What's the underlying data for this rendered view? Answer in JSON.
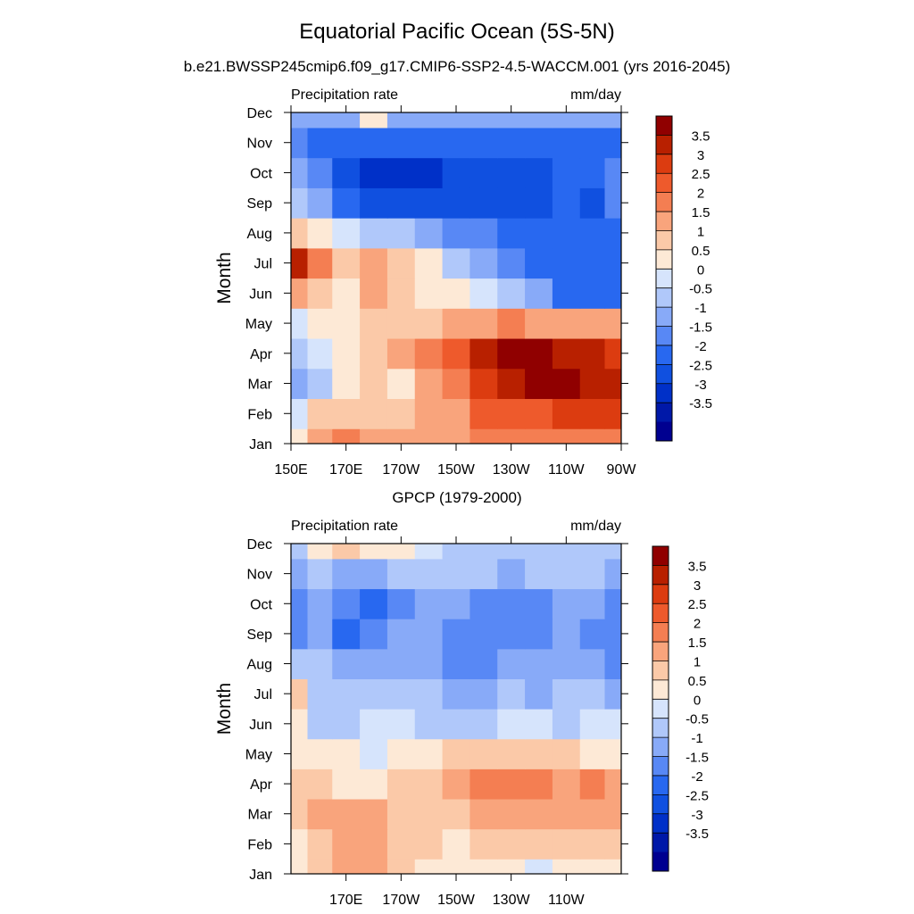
{
  "title": "Equatorial Pacific Ocean (5S-5N)",
  "subtitle": "b.e21.BWSSP245cmip6.f09_g17.CMIP6-SSP2-4.5-WACCM.001 (yrs 2016-2045)",
  "colors": {
    "scale": [
      "#000090",
      "#0018a8",
      "#0030c8",
      "#1050e0",
      "#2868f0",
      "#5888f5",
      "#88aaf8",
      "#b0c8fa",
      "#d6e4fc",
      "#fde9d6",
      "#fbc9a8",
      "#f9a47c",
      "#f47e52",
      "#ee5a2c",
      "#dc3c10",
      "#b82000",
      "#900000"
    ]
  },
  "chart_data": [
    {
      "type": "heatmap",
      "name": "model",
      "panel_title": "",
      "left_label": "Precipitation rate",
      "right_label": "mm/day",
      "ylabel": "Month",
      "months": [
        "Jan",
        "Feb",
        "Mar",
        "Apr",
        "May",
        "Jun",
        "Jul",
        "Aug",
        "Sep",
        "Oct",
        "Nov",
        "Dec"
      ],
      "xlim": [
        150,
        270
      ],
      "x_ticks": [
        {
          "value": 150,
          "label": "150E"
        },
        {
          "value": 170,
          "label": "170E"
        },
        {
          "value": 190,
          "label": "170W"
        },
        {
          "value": 210,
          "label": "150W"
        },
        {
          "value": 230,
          "label": "130W"
        },
        {
          "value": 250,
          "label": "110W"
        },
        {
          "value": 270,
          "label": "90W"
        }
      ],
      "x": [
        152,
        160,
        170,
        180,
        190,
        200,
        210,
        220,
        230,
        240,
        250,
        260,
        268
      ],
      "values": [
        [
          0.5,
          1.5,
          2.0,
          1.8,
          1.5,
          1.5,
          1.5,
          2.0,
          2.0,
          2.0,
          2.0,
          2.0,
          2.0
        ],
        [
          0.0,
          1.0,
          1.0,
          1.0,
          1.0,
          1.5,
          1.5,
          2.5,
          2.5,
          2.5,
          3.0,
          3.0,
          3.0
        ],
        [
          -1.0,
          -0.5,
          0.5,
          1.0,
          0.5,
          1.5,
          2.0,
          3.0,
          3.5,
          4.0,
          4.0,
          3.5,
          3.5
        ],
        [
          -0.5,
          0.0,
          0.5,
          1.0,
          1.5,
          2.0,
          2.5,
          3.5,
          4.0,
          4.0,
          3.5,
          3.5,
          3.0
        ],
        [
          0.0,
          0.5,
          0.5,
          1.0,
          1.0,
          1.0,
          1.5,
          1.5,
          2.0,
          1.5,
          1.5,
          1.5,
          1.5
        ],
        [
          1.5,
          1.0,
          0.5,
          1.5,
          1.0,
          0.5,
          0.5,
          0.0,
          -0.5,
          -1.0,
          -2.0,
          -2.0,
          -2.0
        ],
        [
          3.5,
          2.0,
          1.0,
          1.5,
          1.0,
          0.5,
          -0.5,
          -1.0,
          -1.5,
          -2.0,
          -2.0,
          -2.0,
          -2.0
        ],
        [
          1.0,
          0.5,
          0.0,
          -0.5,
          -0.5,
          -1.0,
          -1.5,
          -1.5,
          -2.0,
          -2.0,
          -2.0,
          -2.0,
          -2.0
        ],
        [
          -0.5,
          -1.0,
          -2.0,
          -2.5,
          -2.5,
          -2.5,
          -2.5,
          -2.5,
          -2.5,
          -2.5,
          -2.0,
          -2.5,
          -1.5
        ],
        [
          -1.0,
          -1.5,
          -2.5,
          -3.0,
          -3.0,
          -3.0,
          -2.5,
          -2.5,
          -2.5,
          -2.5,
          -2.0,
          -2.0,
          -1.5
        ],
        [
          -1.5,
          -2.0,
          -2.0,
          -2.0,
          -2.0,
          -2.0,
          -2.0,
          -2.0,
          -2.0,
          -2.0,
          -2.0,
          -2.0,
          -2.0
        ],
        [
          -1.0,
          -1.0,
          -1.0,
          0.5,
          -1.0,
          -1.0,
          -1.0,
          -1.0,
          -1.0,
          -1.0,
          -1.0,
          -1.0,
          -1.0
        ]
      ],
      "colorbar_labels": [
        "3.5",
        "3",
        "2.5",
        "2",
        "1.5",
        "1",
        "0.5",
        "0",
        "-0.5",
        "-1",
        "-1.5",
        "-2",
        "-2.5",
        "-3",
        "-3.5"
      ]
    },
    {
      "type": "heatmap",
      "name": "observed",
      "panel_title": "GPCP (1979-2000)",
      "left_label": "Precipitation rate",
      "right_label": "mm/day",
      "ylabel": "Month",
      "months": [
        "Jan",
        "Feb",
        "Mar",
        "Apr",
        "May",
        "Jun",
        "Jul",
        "Aug",
        "Sep",
        "Oct",
        "Nov",
        "Dec"
      ],
      "xlim": [
        150,
        270
      ],
      "x_ticks": [
        {
          "value": 170,
          "label": "170E"
        },
        {
          "value": 190,
          "label": "170W"
        },
        {
          "value": 210,
          "label": "150W"
        },
        {
          "value": 230,
          "label": "130W"
        },
        {
          "value": 250,
          "label": "110W"
        }
      ],
      "x": [
        152,
        160,
        170,
        180,
        190,
        200,
        210,
        220,
        230,
        240,
        250,
        260,
        268
      ],
      "values": [
        [
          0.5,
          1.0,
          1.5,
          1.5,
          1.0,
          0.5,
          0.5,
          0.5,
          0.5,
          0.0,
          0.5,
          0.5,
          0.5
        ],
        [
          0.5,
          1.0,
          1.5,
          1.5,
          1.0,
          1.0,
          0.5,
          1.0,
          1.0,
          1.0,
          1.0,
          1.0,
          1.0
        ],
        [
          1.0,
          1.5,
          1.5,
          1.5,
          1.0,
          1.0,
          1.0,
          1.5,
          1.5,
          1.5,
          1.5,
          1.5,
          1.5
        ],
        [
          1.0,
          1.0,
          0.5,
          0.5,
          1.0,
          1.0,
          1.5,
          2.0,
          2.0,
          2.0,
          1.5,
          2.0,
          1.5
        ],
        [
          0.5,
          0.5,
          0.5,
          0.0,
          0.5,
          0.5,
          1.0,
          1.0,
          1.0,
          1.0,
          1.0,
          0.5,
          0.5
        ],
        [
          0.5,
          -0.5,
          -0.5,
          0.0,
          0.0,
          -0.5,
          -0.5,
          -0.5,
          0.0,
          0.0,
          -0.5,
          0.0,
          0.0
        ],
        [
          1.0,
          -0.5,
          -0.5,
          -0.5,
          -0.5,
          -0.5,
          -1.0,
          -1.0,
          -0.5,
          -1.0,
          -0.5,
          -0.5,
          -1.0
        ],
        [
          -0.5,
          -0.5,
          -1.0,
          -1.0,
          -1.0,
          -1.0,
          -1.5,
          -1.5,
          -1.0,
          -1.0,
          -1.0,
          -1.0,
          -1.5
        ],
        [
          -1.5,
          -1.0,
          -2.0,
          -1.5,
          -1.0,
          -1.0,
          -1.5,
          -1.5,
          -1.5,
          -1.5,
          -1.0,
          -1.5,
          -1.5
        ],
        [
          -1.5,
          -1.0,
          -1.5,
          -2.0,
          -1.5,
          -1.0,
          -1.0,
          -1.5,
          -1.5,
          -1.5,
          -1.0,
          -1.0,
          -1.5
        ],
        [
          -1.0,
          -0.5,
          -1.0,
          -1.0,
          -0.5,
          -0.5,
          -0.5,
          -0.5,
          -1.0,
          -0.5,
          -0.5,
          -0.5,
          -1.0
        ],
        [
          -0.5,
          0.5,
          1.0,
          0.5,
          0.5,
          0.0,
          -0.5,
          -0.5,
          -0.5,
          -0.5,
          -0.5,
          -0.5,
          -0.5
        ]
      ],
      "colorbar_labels": [
        "3.5",
        "3",
        "2.5",
        "2",
        "1.5",
        "1",
        "0.5",
        "0",
        "-0.5",
        "-1",
        "-1.5",
        "-2",
        "-2.5",
        "-3",
        "-3.5"
      ]
    }
  ]
}
